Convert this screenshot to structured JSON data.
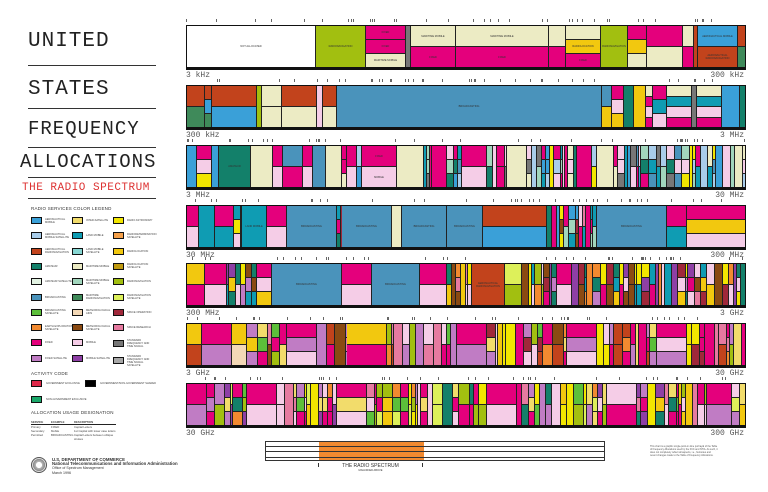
{
  "title_lines": [
    "UNITED",
    "STATES",
    "FREQUENCY",
    "ALLOCATIONS"
  ],
  "subtitle": "THE RADIO SPECTRUM",
  "legend": {
    "heading": "RADIO SERVICES COLOR LEGEND",
    "items": [
      {
        "label": "Aeronautical Mobile",
        "color": "#3aa0d8"
      },
      {
        "label": "Aeronautical Mobile Satellite",
        "color": "#a9cdea"
      },
      {
        "label": "Aeronautical Radionavigation",
        "color": "#c2431c"
      },
      {
        "label": "Amateur",
        "color": "#13806a"
      },
      {
        "label": "Amateur Satellite",
        "color": "#e2f2e2"
      },
      {
        "label": "Broadcasting",
        "color": "#4a93bb"
      },
      {
        "label": "Broadcasting Satellite",
        "color": "#5cbf3a"
      },
      {
        "label": "Earth Exploration Satellite",
        "color": "#f28a30"
      },
      {
        "label": "Fixed",
        "color": "#e4007c"
      },
      {
        "label": "Fixed Satellite",
        "color": "#c07cc4"
      },
      {
        "label": "Inter-Satellite",
        "color": "#f2dc6b"
      },
      {
        "label": "Land Mobile",
        "color": "#0f9cb3"
      },
      {
        "label": "Land Mobile Satellite",
        "color": "#86d6d2"
      },
      {
        "label": "Maritime Mobile",
        "color": "#ecebc4"
      },
      {
        "label": "Maritime Mobile Satellite",
        "color": "#a2d6bd"
      },
      {
        "label": "Maritime Radionavigation",
        "color": "#3f8a5a"
      },
      {
        "label": "Meteorological Aids",
        "color": "#f3d8b6"
      },
      {
        "label": "Meteorological Satellite",
        "color": "#8a4a12"
      },
      {
        "label": "Mobile",
        "color": "#f5cde7"
      },
      {
        "label": "Mobile Satellite",
        "color": "#8e3fa5"
      },
      {
        "label": "Radio Astronomy",
        "color": "#f2e600"
      },
      {
        "label": "Radiodetermination Satellite",
        "color": "#f5a04a"
      },
      {
        "label": "Radiolocation",
        "color": "#f2c80f"
      },
      {
        "label": "Radiolocation Satellite",
        "color": "#c09a10"
      },
      {
        "label": "Radionavigation",
        "color": "#a2bf10"
      },
      {
        "label": "Radionavigation Satellite",
        "color": "#ddf05a"
      },
      {
        "label": "Space Operation",
        "color": "#a0283a"
      },
      {
        "label": "Space Research",
        "color": "#e67aa0"
      },
      {
        "label": "Standard Frequency and Time Signal",
        "color": "#777777"
      },
      {
        "label": "Standard Frequency and Time Signal Satellite",
        "color": "#a8a8a8"
      }
    ]
  },
  "activity": {
    "heading": "ACTIVITY CODE",
    "items": [
      {
        "label": "Government Exclusive",
        "color": "#e0284a"
      },
      {
        "label": "Government/Non-Government Shared",
        "color": "#000000"
      },
      {
        "label": "Non-Government Exclusive",
        "color": "#1aa86a"
      }
    ]
  },
  "usage": {
    "heading": "ALLOCATION USAGE DESIGNATION",
    "columns": [
      "SERVICE",
      "EXAMPLE",
      "DESCRIPTION"
    ],
    "rows": [
      [
        "Primary",
        "FIXED",
        "Capital Letters"
      ],
      [
        "Secondary",
        "Mobile",
        "1st Capital with lower case letters"
      ],
      [
        "Permitted",
        "BROADCASTING",
        "Capital Letters between oblique strokes"
      ]
    ]
  },
  "agency": {
    "line1": "U.S. DEPARTMENT OF COMMERCE",
    "line2": "National Telecommunications and Information Administration",
    "line3": "Office of Spectrum Management",
    "date": "March 1996"
  },
  "bands": [
    {
      "start": "3 kHz",
      "end": "300 kHz"
    },
    {
      "start": "300 kHz",
      "end": "3 MHz"
    },
    {
      "start": "3 MHz",
      "end": "30 MHz"
    },
    {
      "start": "30 MHz",
      "end": "300 MHz"
    },
    {
      "start": "300 MHz",
      "end": "3 GHz"
    },
    {
      "start": "3 GHz",
      "end": "30 GHz"
    },
    {
      "start": "30 GHz",
      "end": "300 GHz"
    }
  ],
  "band_labels": {
    "not_allocated": "NOT ALLOCATED",
    "radionavigation": "RADIONAVIGATION",
    "fixed": "FIXED",
    "maritime_mobile": "MARITIME MOBILE",
    "radiolocation": "Radiolocation",
    "aero_mobile": "Aeronautical Mobile",
    "aero_radionav": "AERONAUTICAL RADIONAVIGATION",
    "broadcasting": "BROADCASTING",
    "amateur": "AMATEUR",
    "mobile": "MOBILE",
    "land_mobile": "LAND MOBILE"
  },
  "overview": {
    "caption": "THE RADIO SPECTRUM",
    "sub": "MAGNIFIED ABOVE"
  },
  "note": "This chart is a graphic single-point-in-time portrayal of the Table of Frequency Allocations used by the FCC and NTIA. As such, it does not completely reflect all aspects, i.e., footnotes and recent changes made to the Table of Frequency Allocations."
}
